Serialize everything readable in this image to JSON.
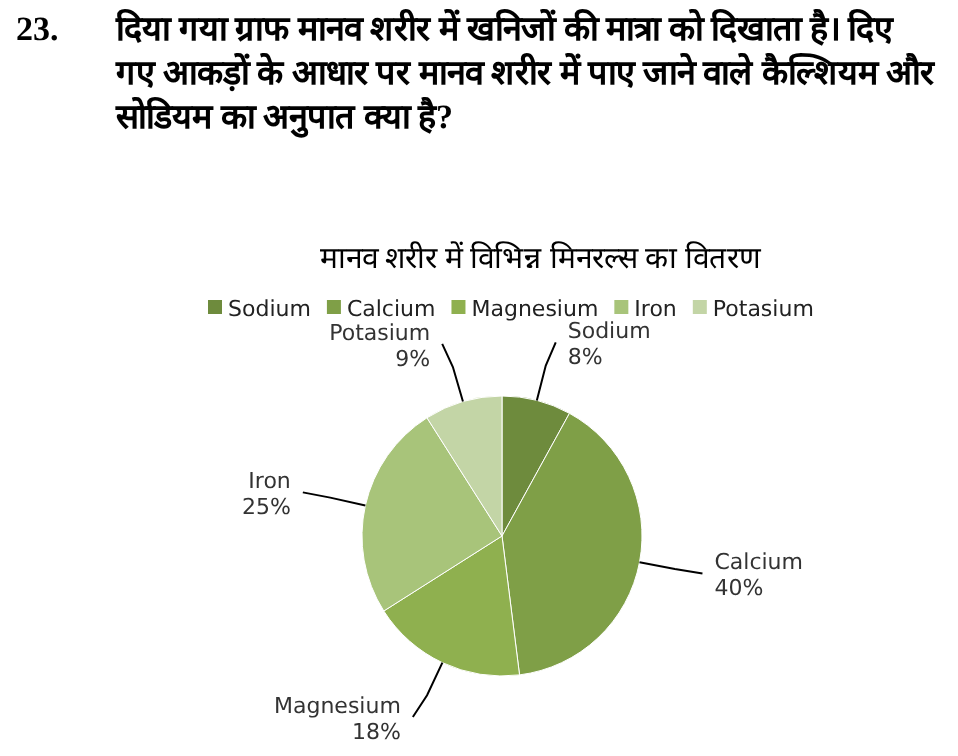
{
  "chart_data": {
    "type": "pie",
    "title": "मानव शरीर में विभिन्न मिनरल्स का वितरण",
    "annotations": [
      "23. दिया गया ग्राफ मानव शरीर में खनिजों की मात्रा को दिखाता है। दिए गए आकड़ों के आधार पर मानव शरीर में पाए जाने वाले कैल्शियम और सोडियम का अनुपात क्या है?"
    ],
    "categories": [
      "Sodium",
      "Calcium",
      "Magnesium",
      "Iron",
      "Potasium"
    ],
    "values": [
      8,
      40,
      18,
      25,
      9
    ],
    "value_labels": [
      "8%",
      "40%",
      "18%",
      "25%",
      "9%"
    ],
    "colors": [
      "#6e8b3d",
      "#7f9f47",
      "#8fb04f",
      "#a8c47a",
      "#c3d5a6"
    ],
    "legend": "top"
  }
}
